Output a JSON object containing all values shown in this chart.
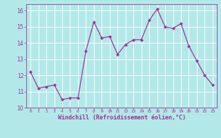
{
  "x": [
    0,
    1,
    2,
    3,
    4,
    5,
    6,
    7,
    8,
    9,
    10,
    11,
    12,
    13,
    14,
    15,
    16,
    17,
    18,
    19,
    20,
    21,
    22,
    23
  ],
  "y": [
    12.2,
    11.2,
    11.3,
    11.4,
    10.5,
    10.6,
    10.6,
    13.5,
    15.3,
    14.3,
    14.4,
    13.3,
    13.9,
    14.2,
    14.2,
    15.4,
    16.1,
    15.0,
    14.9,
    15.2,
    13.8,
    12.9,
    12.0,
    11.4
  ],
  "line_color": "#993399",
  "marker": "D",
  "marker_size": 2,
  "bg_color": "#b3e8e8",
  "grid_color": "#ffffff",
  "xlabel": "Windchill (Refroidissement éolien,°C)",
  "xlabel_color": "#993399",
  "tick_color": "#993399",
  "ylim": [
    10,
    16.4
  ],
  "xlim": [
    -0.5,
    23.5
  ],
  "yticks": [
    10,
    11,
    12,
    13,
    14,
    15,
    16
  ],
  "xticks": [
    0,
    1,
    2,
    3,
    4,
    5,
    6,
    7,
    8,
    9,
    10,
    11,
    12,
    13,
    14,
    15,
    16,
    17,
    18,
    19,
    20,
    21,
    22,
    23
  ]
}
